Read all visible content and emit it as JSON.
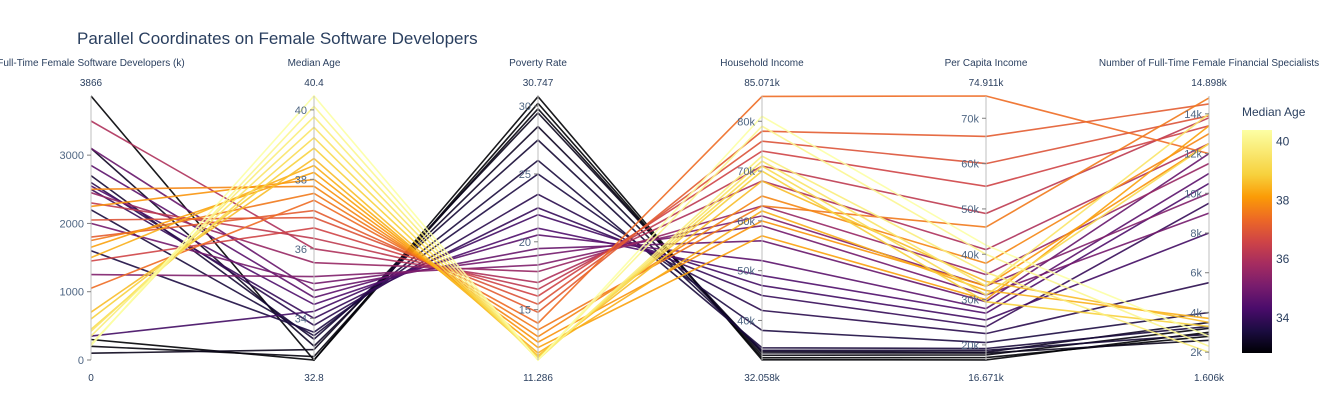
{
  "chart_data": {
    "type": "parallel_coordinates",
    "title": "Parallel Coordinates on Female Software Developers",
    "color_by": "Median Age",
    "colorscale": "Inferno",
    "colorbar": {
      "title": "Median Age",
      "range": [
        32.8,
        40.4
      ],
      "ticks": [
        "34",
        "36",
        "38",
        "40"
      ]
    },
    "dimensions": [
      {
        "label": "Full-Time Female Software Developers (k)",
        "range": [
          0,
          3866
        ],
        "range_labels": [
          "0",
          "3866"
        ],
        "ticks": [
          {
            "v": 0,
            "t": "0"
          },
          {
            "v": 1000,
            "t": "1000"
          },
          {
            "v": 2000,
            "t": "2000"
          },
          {
            "v": 3000,
            "t": "3000"
          }
        ]
      },
      {
        "label": "Median Age",
        "range": [
          32.8,
          40.4
        ],
        "range_labels": [
          "32.8",
          "40.4"
        ],
        "ticks": [
          {
            "v": 34,
            "t": "34"
          },
          {
            "v": 36,
            "t": "36"
          },
          {
            "v": 38,
            "t": "38"
          },
          {
            "v": 40,
            "t": "40"
          }
        ]
      },
      {
        "label": "Poverty Rate",
        "range": [
          11.286,
          30.747
        ],
        "range_labels": [
          "11.286",
          "30.747"
        ],
        "ticks": [
          {
            "v": 15,
            "t": "15"
          },
          {
            "v": 20,
            "t": "20"
          },
          {
            "v": 25,
            "t": "25"
          },
          {
            "v": 30,
            "t": "30"
          }
        ]
      },
      {
        "label": "Household Income",
        "range": [
          32058,
          85071
        ],
        "range_labels": [
          "32.058k",
          "85.071k"
        ],
        "ticks": [
          {
            "v": 40000,
            "t": "40k"
          },
          {
            "v": 50000,
            "t": "50k"
          },
          {
            "v": 60000,
            "t": "60k"
          },
          {
            "v": 70000,
            "t": "70k"
          },
          {
            "v": 80000,
            "t": "80k"
          }
        ]
      },
      {
        "label": "Per Capita Income",
        "range": [
          16671,
          74911
        ],
        "range_labels": [
          "16.671k",
          "74.911k"
        ],
        "ticks": [
          {
            "v": 20000,
            "t": "20k"
          },
          {
            "v": 30000,
            "t": "30k"
          },
          {
            "v": 40000,
            "t": "40k"
          },
          {
            "v": 50000,
            "t": "50k"
          },
          {
            "v": 60000,
            "t": "60k"
          },
          {
            "v": 70000,
            "t": "70k"
          }
        ]
      },
      {
        "label": "Number of Full-Time Female Financial Specialists",
        "range": [
          1606,
          14898
        ],
        "range_labels": [
          "1.606k",
          "14.898k"
        ],
        "ticks": [
          {
            "v": 2000,
            "t": "2k"
          },
          {
            "v": 4000,
            "t": "4k"
          },
          {
            "v": 6000,
            "t": "6k"
          },
          {
            "v": 8000,
            "t": "8k"
          },
          {
            "v": 10000,
            "t": "10k"
          },
          {
            "v": 12000,
            "t": "12k"
          },
          {
            "v": 14000,
            "t": "14k"
          }
        ]
      }
    ],
    "records": [
      [
        3866,
        32.8,
        30.7,
        32100,
        16700,
        3000
      ],
      [
        300,
        32.8,
        30.2,
        32500,
        17200,
        2800
      ],
      [
        200,
        32.9,
        29.8,
        33000,
        17800,
        3200
      ],
      [
        100,
        33.1,
        29.5,
        33500,
        18200,
        2600
      ],
      [
        3100,
        33.2,
        28.5,
        33800,
        18400,
        3500
      ],
      [
        2700,
        33.4,
        27.5,
        34000,
        18800,
        2900
      ],
      [
        2200,
        33.5,
        26.0,
        34500,
        19200,
        3300
      ],
      [
        1600,
        33.6,
        25.0,
        38000,
        20500,
        4000
      ],
      [
        2600,
        33.8,
        23.5,
        42000,
        22500,
        5500
      ],
      [
        2500,
        34.0,
        22.5,
        45000,
        24000,
        9500
      ],
      [
        350,
        34.2,
        22.0,
        47000,
        25500,
        8000
      ],
      [
        2550,
        34.4,
        21.0,
        49000,
        27000,
        10500
      ],
      [
        2850,
        34.6,
        20.5,
        52000,
        28000,
        11000
      ],
      [
        3100,
        34.8,
        19.5,
        56000,
        29500,
        12000
      ],
      [
        2000,
        35.0,
        19.0,
        59000,
        31000,
        9000
      ],
      [
        1250,
        35.2,
        18.3,
        61000,
        33000,
        10000
      ],
      [
        2450,
        35.6,
        17.8,
        63000,
        35500,
        11500
      ],
      [
        3500,
        36.0,
        17.0,
        68000,
        41000,
        12500
      ],
      [
        2300,
        36.3,
        16.5,
        71000,
        49000,
        13800
      ],
      [
        1450,
        36.6,
        16.0,
        74000,
        55000,
        13400
      ],
      [
        2050,
        36.9,
        15.4,
        76000,
        60000,
        13900
      ],
      [
        1800,
        37.1,
        14.8,
        78000,
        66000,
        14500
      ],
      [
        1050,
        37.4,
        14.0,
        85000,
        74900,
        12000
      ],
      [
        1750,
        37.6,
        13.5,
        63000,
        46000,
        14800
      ],
      [
        2500,
        37.8,
        13.0,
        65000,
        38000,
        13000
      ],
      [
        2250,
        38.0,
        12.6,
        60000,
        33000,
        12500
      ],
      [
        1650,
        38.2,
        12.2,
        57000,
        30000,
        13400
      ],
      [
        1500,
        38.4,
        11.8,
        62000,
        32000,
        3700
      ],
      [
        700,
        38.6,
        11.6,
        68000,
        34000,
        3500
      ],
      [
        600,
        38.9,
        11.5,
        70000,
        29500,
        3300
      ],
      [
        450,
        39.2,
        11.4,
        71000,
        31000,
        12500
      ],
      [
        420,
        39.5,
        11.35,
        72000,
        33000,
        14000
      ],
      [
        350,
        39.8,
        11.3,
        73000,
        36000,
        2000
      ],
      [
        230,
        40.1,
        11.29,
        79000,
        40000,
        2300
      ],
      [
        210,
        40.4,
        11.286,
        81000,
        42000,
        2800
      ]
    ]
  }
}
